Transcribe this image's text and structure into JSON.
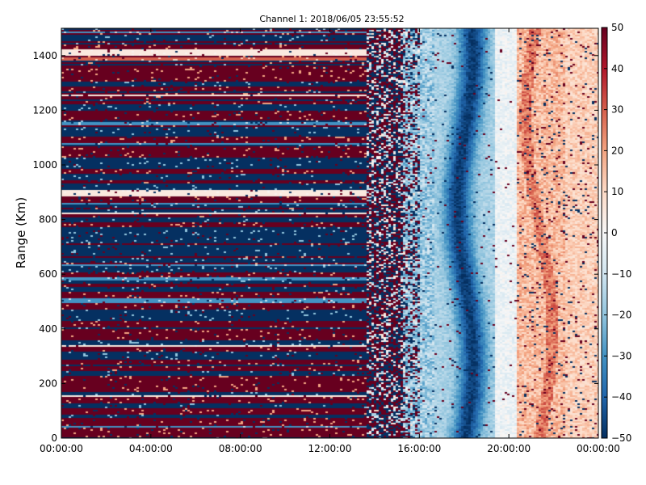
{
  "chart_data": {
    "type": "heatmap",
    "title": "Channel 1: 2018/06/05 23:55:52",
    "xlabel": "",
    "ylabel": "Range (Km)",
    "x_ticks": [
      "00:00:00",
      "04:00:00",
      "08:00:00",
      "12:00:00",
      "16:00:00",
      "20:00:00",
      "00:00:00"
    ],
    "x_range_hours": [
      0,
      24
    ],
    "y_ticks": [
      0,
      200,
      400,
      600,
      800,
      1000,
      1200,
      1400
    ],
    "ylim": [
      0,
      1500
    ],
    "colorbar": {
      "ticks": [
        50,
        40,
        30,
        20,
        10,
        0,
        -10,
        -20,
        -30,
        -40,
        -50
      ],
      "tick_labels": [
        "50",
        "40",
        "30",
        "20",
        "10",
        "0",
        "−10",
        "−20",
        "−30",
        "−40",
        "−50"
      ],
      "range": [
        -50,
        50
      ],
      "colormap": "RdBu_r"
    },
    "regions": [
      {
        "hours": [
          0,
          13.6
        ],
        "pattern": "horizontal saturated bands alternating near +50 and -50"
      },
      {
        "hours": [
          13.6,
          16.0
        ],
        "pattern": "random saturated noise +/-50"
      },
      {
        "hours": [
          16.0,
          19.3
        ],
        "pattern": "mostly negative, -10 to -45, darkest near 18:00"
      },
      {
        "hours": [
          19.3,
          20.3
        ],
        "pattern": "near zero, slightly negative"
      },
      {
        "hours": [
          20.3,
          24.0
        ],
        "pattern": "mostly positive, +5 to +30, sparse saturated speckles"
      }
    ]
  }
}
